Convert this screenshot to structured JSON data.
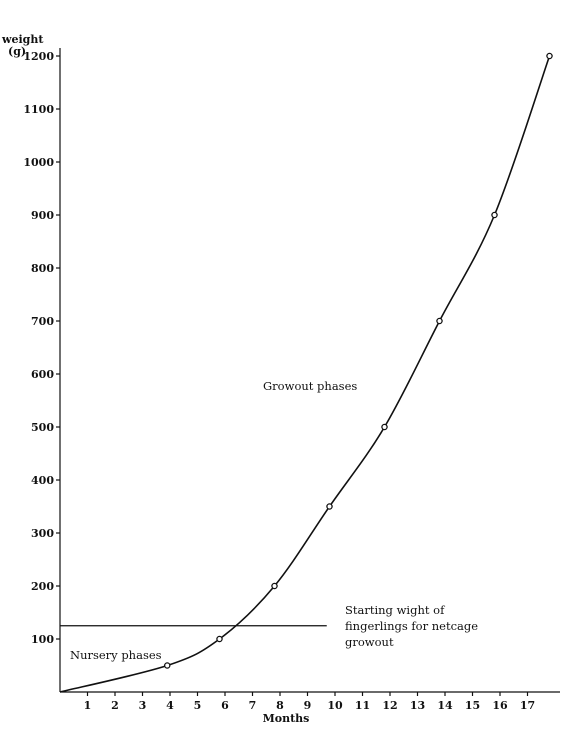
{
  "chart_data": {
    "type": "line",
    "title": "",
    "ylabel": "weight",
    "ylabel_unit": "(g)",
    "xlabel": "Months",
    "xlim": [
      0,
      18
    ],
    "ylim": [
      0,
      1200
    ],
    "x_ticks": [
      1,
      2,
      3,
      4,
      5,
      6,
      7,
      8,
      9,
      10,
      11,
      12,
      13,
      14,
      15,
      16,
      17
    ],
    "y_ticks": [
      100,
      200,
      300,
      400,
      500,
      600,
      700,
      800,
      900,
      1000,
      1100,
      1200
    ],
    "grid": false,
    "series": [
      {
        "name": "",
        "points": [
          {
            "x": 0,
            "y": 0
          },
          {
            "x": 3.9,
            "y": 50
          },
          {
            "x": 5.8,
            "y": 100
          },
          {
            "x": 7.8,
            "y": 200
          },
          {
            "x": 9.8,
            "y": 350
          },
          {
            "x": 11.8,
            "y": 500
          },
          {
            "x": 13.8,
            "y": 700
          },
          {
            "x": 15.8,
            "y": 900
          },
          {
            "x": 17.8,
            "y": 1200
          }
        ]
      }
    ],
    "reference_line": {
      "y": 125,
      "x_start": 0,
      "x_end": 9.7
    },
    "annotations": {
      "growout": "Growout phases",
      "nursery": "Nursery phases",
      "starting_line1": "Starting wight of",
      "starting_line2": "fingerlings for netcage",
      "starting_line3": "growout"
    }
  }
}
